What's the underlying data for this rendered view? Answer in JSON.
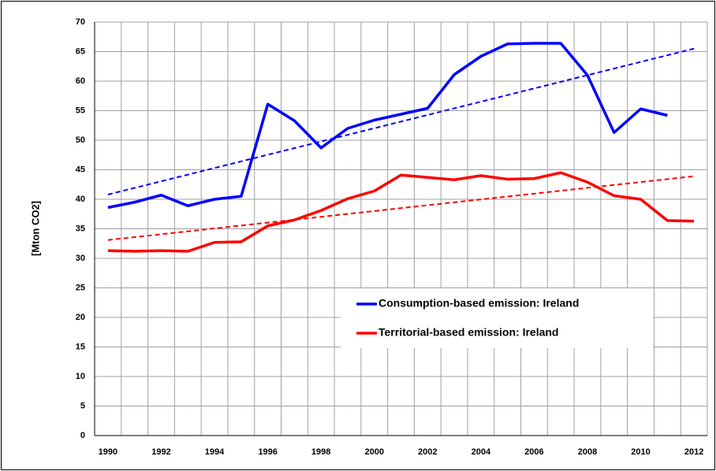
{
  "chart_data": {
    "type": "line",
    "ylabel": "[Mton  CO2]",
    "x": [
      1990,
      1991,
      1992,
      1993,
      1994,
      1995,
      1996,
      1997,
      1998,
      1999,
      2000,
      2001,
      2002,
      2003,
      2004,
      2005,
      2006,
      2007,
      2008,
      2009,
      2010,
      2011,
      2012
    ],
    "series": [
      {
        "name": "Consumption-based emission: Ireland",
        "color": "#0000ff",
        "values": [
          38.6,
          39.5,
          40.7,
          38.9,
          40.0,
          40.5,
          56.1,
          53.3,
          48.7,
          52.0,
          53.4,
          54.4,
          55.4,
          61.1,
          64.2,
          66.3,
          66.4,
          66.4,
          61.0,
          51.3,
          55.3,
          54.2,
          null
        ]
      },
      {
        "name": "Territorial-based emission:  Ireland",
        "color": "#ff0000",
        "values": [
          31.3,
          31.2,
          31.3,
          31.2,
          32.7,
          32.8,
          35.5,
          36.5,
          38.1,
          40.1,
          41.4,
          44.1,
          43.7,
          43.3,
          44.0,
          43.4,
          43.5,
          44.5,
          42.9,
          40.6,
          40.0,
          36.4,
          36.3
        ]
      }
    ],
    "trendlines": [
      {
        "color": "#0000ff",
        "x": [
          1990,
          2012
        ],
        "values": [
          40.8,
          65.5
        ]
      },
      {
        "color": "#ff0000",
        "x": [
          1990,
          2012
        ],
        "values": [
          33.1,
          43.9
        ]
      }
    ],
    "xlim": [
      1989.5,
      2012.5
    ],
    "xticks": [
      1990,
      1992,
      1994,
      1996,
      1998,
      2000,
      2002,
      2004,
      2006,
      2008,
      2010,
      2012
    ],
    "xminorticks": [
      1989.5,
      1990.5,
      1991.5,
      1992.5,
      1993.5,
      1994.5,
      1995.5,
      1996.5,
      1997.5,
      1998.5,
      1999.5,
      2000.5,
      2001.5,
      2002.5,
      2003.5,
      2004.5,
      2005.5,
      2006.5,
      2007.5,
      2008.5,
      2009.5,
      2010.5,
      2011.5,
      2012.5
    ],
    "ylim": [
      0,
      70
    ],
    "yticks": [
      0,
      5,
      10,
      15,
      20,
      25,
      30,
      35,
      40,
      45,
      50,
      55,
      60,
      65,
      70
    ],
    "grid": true
  }
}
